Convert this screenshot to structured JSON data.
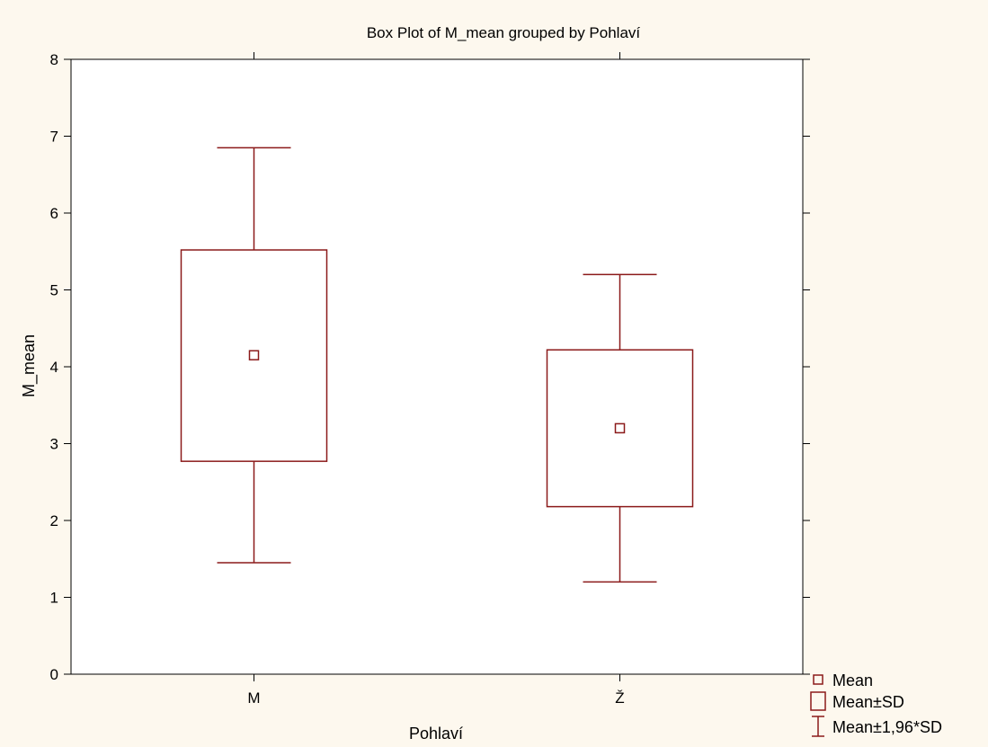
{
  "chart_data": {
    "type": "box",
    "title": "Box Plot of M_mean grouped by  Pohlaví",
    "xlabel": "Pohlaví",
    "ylabel": "M_mean",
    "ylim": [
      0,
      8
    ],
    "yticks": [
      "0",
      "1",
      "2",
      "3",
      "4",
      "5",
      "6",
      "7",
      "8"
    ],
    "categories": [
      "M",
      "Ž"
    ],
    "series": [
      {
        "category": "M",
        "mean": 4.15,
        "sd_low": 2.77,
        "sd_high": 5.52,
        "ci_low": 1.45,
        "ci_high": 6.85
      },
      {
        "category": "Ž",
        "mean": 3.2,
        "sd_low": 2.18,
        "sd_high": 4.22,
        "ci_low": 1.2,
        "ci_high": 5.2
      }
    ],
    "grid": true,
    "legend_position": "bottom-right",
    "legend": [
      {
        "symbol": "point",
        "label": "Mean"
      },
      {
        "symbol": "box",
        "label": "Mean±SD"
      },
      {
        "symbol": "whisker",
        "label": "Mean±1,96*SD"
      }
    ],
    "colors": {
      "mark": "#8b1a1a",
      "background": "#fdf8ee",
      "plot": "#ffffff",
      "grid": "#c8c8c8"
    }
  }
}
